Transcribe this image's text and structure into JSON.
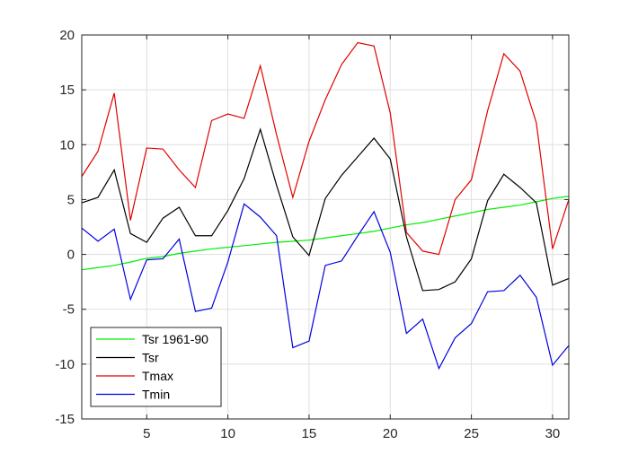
{
  "chart_data": {
    "type": "line",
    "title": "",
    "xlabel": "",
    "ylabel": "",
    "xlim": [
      1,
      31
    ],
    "ylim": [
      -15,
      20
    ],
    "xticks": [
      5,
      10,
      15,
      20,
      25,
      30
    ],
    "yticks": [
      -15,
      -10,
      -5,
      0,
      5,
      10,
      15,
      20
    ],
    "grid": true,
    "legend_position": "bottom-left",
    "x": [
      1,
      2,
      3,
      4,
      5,
      6,
      7,
      8,
      9,
      10,
      11,
      12,
      13,
      14,
      15,
      16,
      17,
      18,
      19,
      20,
      21,
      22,
      23,
      24,
      25,
      26,
      27,
      28,
      29,
      30,
      31
    ],
    "series": [
      {
        "name": "Tsr 1961-90",
        "color": "#00ee00",
        "values": [
          -1.4,
          -1.2,
          -1.0,
          -0.7,
          -0.35,
          -0.2,
          0.1,
          0.3,
          0.5,
          0.65,
          0.8,
          0.95,
          1.1,
          1.2,
          1.3,
          1.5,
          1.7,
          1.9,
          2.1,
          2.4,
          2.7,
          2.9,
          3.2,
          3.5,
          3.8,
          4.1,
          4.3,
          4.5,
          4.8,
          5.1,
          5.3
        ]
      },
      {
        "name": "Tsr",
        "color": "#000000",
        "values": [
          4.7,
          5.2,
          7.7,
          1.9,
          1.1,
          3.3,
          4.3,
          1.7,
          1.7,
          4.0,
          6.9,
          11.4,
          6.3,
          1.6,
          -0.1,
          5.1,
          7.2,
          8.9,
          10.6,
          8.7,
          1.6,
          -3.3,
          -3.2,
          -2.5,
          -0.4,
          4.9,
          7.3,
          6.1,
          4.7,
          -2.8,
          -2.2
        ]
      },
      {
        "name": "Tmax",
        "color": "#e00000",
        "values": [
          7.1,
          9.4,
          14.7,
          3.1,
          9.7,
          9.6,
          7.7,
          6.1,
          12.2,
          12.8,
          12.4,
          17.2,
          10.9,
          5.2,
          10.3,
          14.1,
          17.3,
          19.3,
          19.0,
          12.9,
          2.0,
          0.3,
          0.0,
          5.0,
          6.8,
          13.1,
          18.3,
          16.7,
          12.0,
          0.5,
          5.0
        ]
      },
      {
        "name": "Tmin",
        "color": "#0000e0",
        "values": [
          2.4,
          1.2,
          2.3,
          -4.1,
          -0.5,
          -0.4,
          1.4,
          -5.2,
          -4.9,
          -0.7,
          4.6,
          3.4,
          1.7,
          -8.5,
          -7.9,
          -1.0,
          -0.6,
          1.7,
          3.9,
          0.2,
          -7.2,
          -5.9,
          -10.4,
          -7.6,
          -6.3,
          -3.4,
          -3.3,
          -1.9,
          -3.9,
          -10.1,
          -8.3
        ]
      }
    ]
  }
}
